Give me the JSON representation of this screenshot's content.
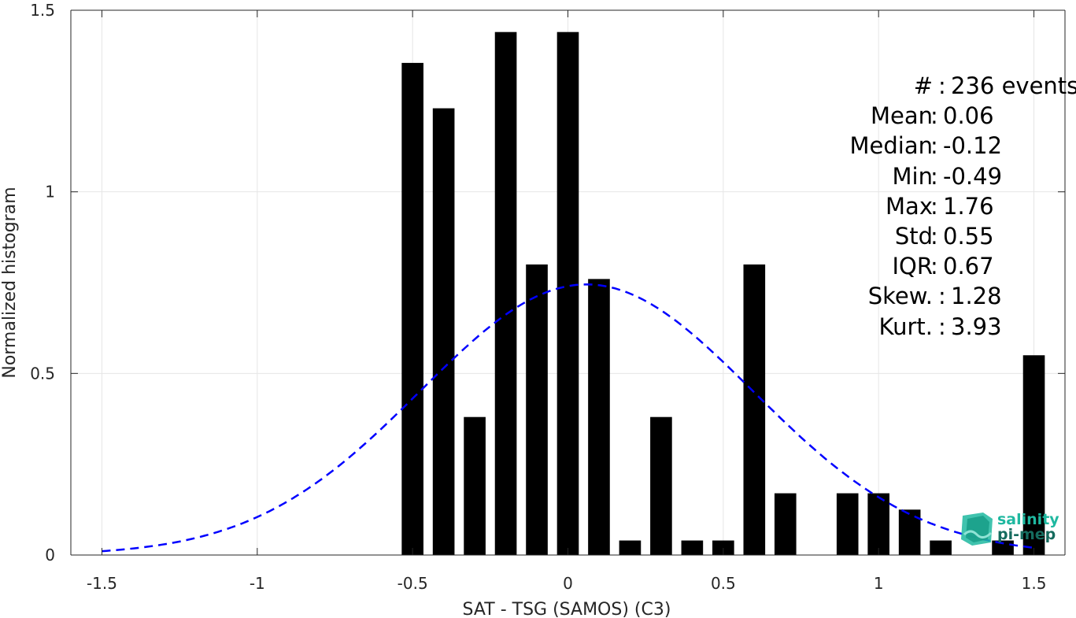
{
  "chart_data": {
    "type": "bar",
    "xlabel": "SAT - TSG (SAMOS) (C3)",
    "ylabel": "Normalized histogram",
    "xlim": [
      -1.6,
      1.6
    ],
    "ylim": [
      0,
      1.5
    ],
    "grid": true,
    "x_ticks": [
      "-1.5",
      "-1",
      "-0.5",
      "0",
      "0.5",
      "1",
      "1.5"
    ],
    "y_ticks": [
      "0",
      "0.5",
      "1",
      "1.5"
    ],
    "bin_width": 0.07,
    "bars": [
      {
        "x": -0.5,
        "value": 1.355
      },
      {
        "x": -0.4,
        "value": 1.23
      },
      {
        "x": -0.3,
        "value": 0.38
      },
      {
        "x": -0.2,
        "value": 1.44
      },
      {
        "x": -0.1,
        "value": 0.8
      },
      {
        "x": 0.0,
        "value": 1.44
      },
      {
        "x": 0.1,
        "value": 0.76
      },
      {
        "x": 0.2,
        "value": 0.04
      },
      {
        "x": 0.3,
        "value": 0.38
      },
      {
        "x": 0.4,
        "value": 0.04
      },
      {
        "x": 0.5,
        "value": 0.04
      },
      {
        "x": 0.6,
        "value": 0.8
      },
      {
        "x": 0.7,
        "value": 0.17
      },
      {
        "x": 0.9,
        "value": 0.17
      },
      {
        "x": 1.0,
        "value": 0.17
      },
      {
        "x": 1.1,
        "value": 0.125
      },
      {
        "x": 1.2,
        "value": 0.04
      },
      {
        "x": 1.4,
        "value": 0.04
      },
      {
        "x": 1.5,
        "value": 0.55
      }
    ],
    "fit_curve": {
      "mean": 0.06,
      "std": 0.535,
      "peak": 0.745,
      "x_range": [
        -1.5,
        1.5
      ],
      "color": "#0000ff",
      "style": "dashed"
    },
    "bar_color": "#000000"
  },
  "stats": [
    {
      "name": "#",
      "value": "236 events",
      "wide": true
    },
    {
      "name": "Mean",
      "value": "0.06"
    },
    {
      "name": "Median",
      "value": "-0.12"
    },
    {
      "name": "Min",
      "value": "-0.49"
    },
    {
      "name": "Max",
      "value": "1.76"
    },
    {
      "name": "Std",
      "value": "0.55"
    },
    {
      "name": "IQR",
      "value": "0.67"
    },
    {
      "name": "Skew.",
      "value": "1.28",
      "wide": true
    },
    {
      "name": "Kurt.",
      "value": "3.93",
      "wide": true
    }
  ],
  "stat_separator": ":",
  "logo": {
    "line1": "salinity",
    "line2": "pi-mep",
    "color1": "#1fb8a0",
    "color2": "#156b5e"
  }
}
